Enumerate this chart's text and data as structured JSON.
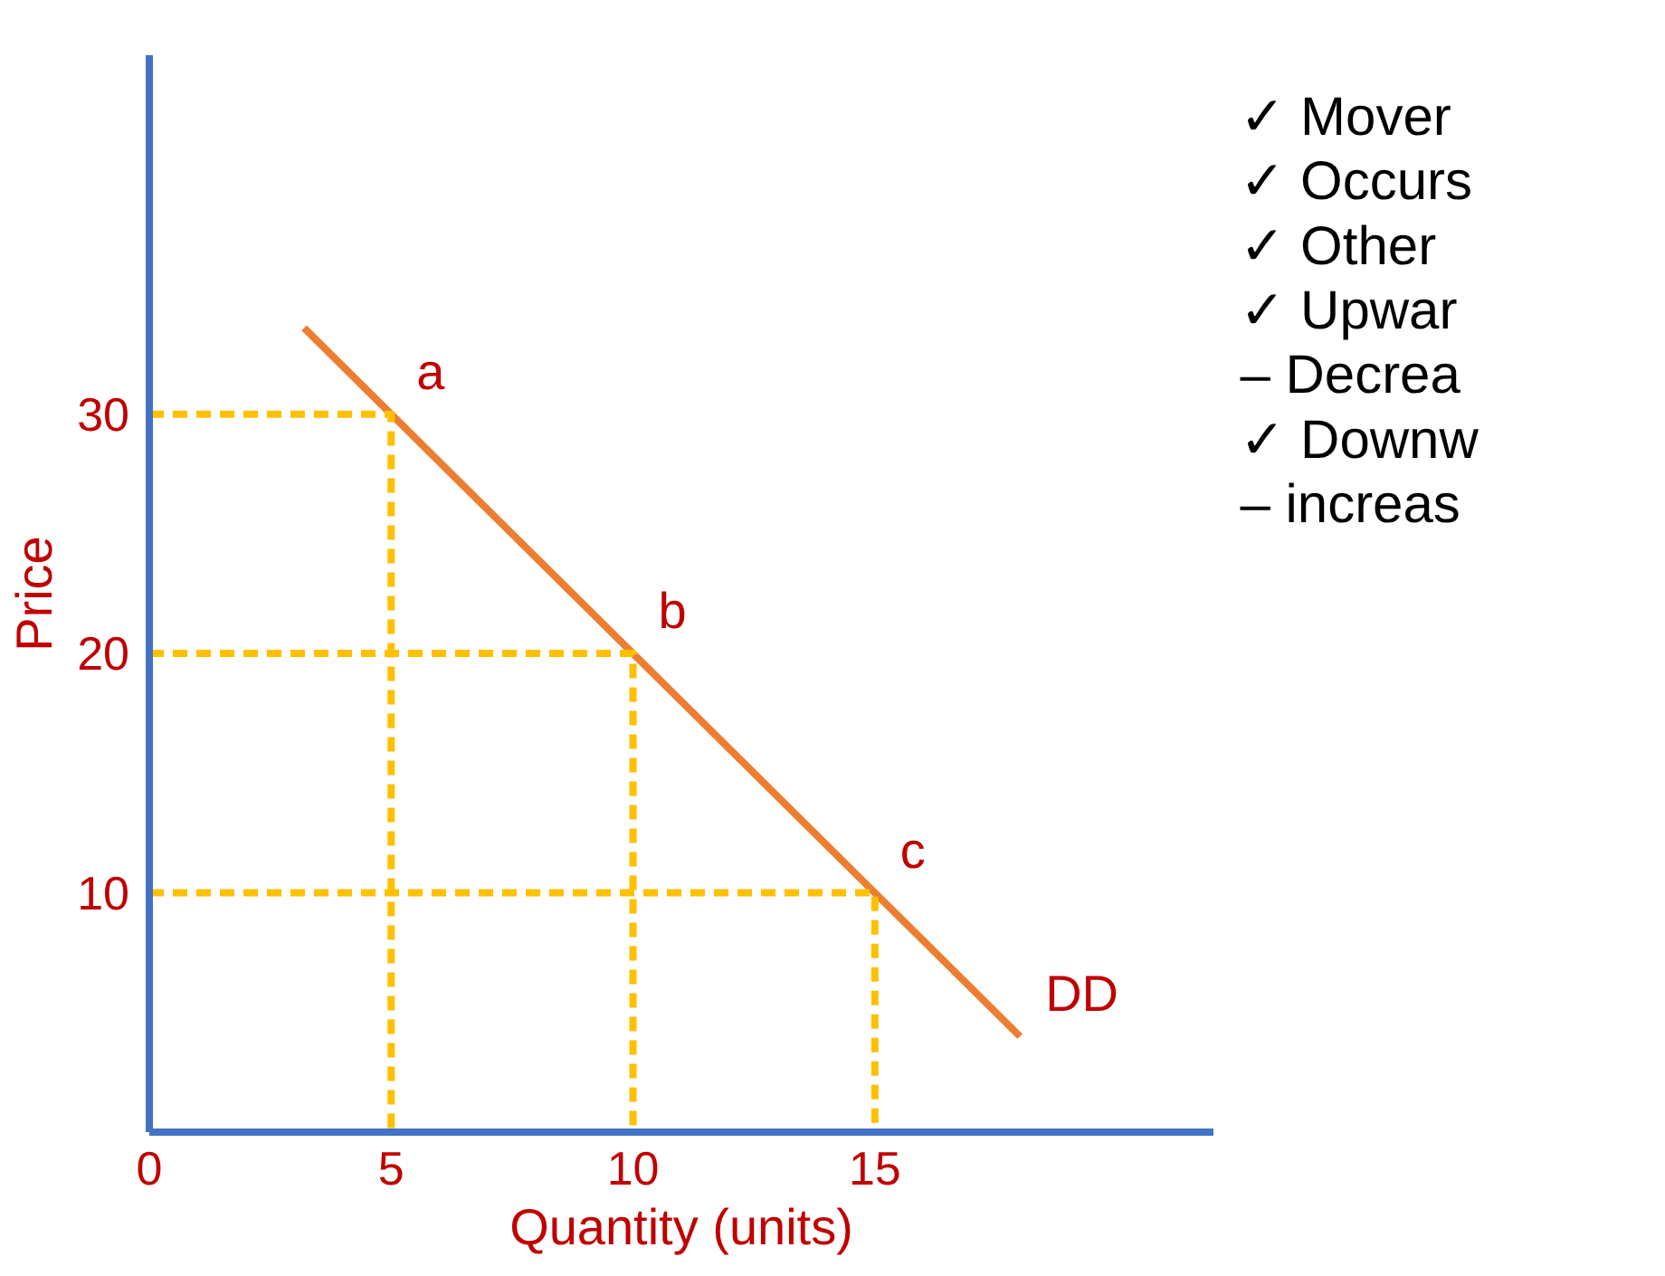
{
  "chart_data": [
    {
      "type": "line",
      "xlabel": "Quantity (units)",
      "ylabel": "Price",
      "xlim": [
        0,
        22
      ],
      "ylim": [
        0,
        45
      ],
      "xticks": [
        0,
        5,
        10,
        15
      ],
      "yticks": [
        10,
        20,
        30
      ],
      "grid": false,
      "series": [
        {
          "color": "#ed7d31",
          "x": [
            3.2,
            5,
            10,
            15,
            18
          ],
          "values": [
            33.6,
            30,
            20,
            10,
            4
          ]
        },
        {
          "color": "#ffc000",
          "line_style": "dashed",
          "x": [
            0,
            5,
            5
          ],
          "values": [
            30,
            30,
            0
          ]
        },
        {
          "color": "#ffc000",
          "line_style": "dashed",
          "x": [
            0,
            10,
            10
          ],
          "values": [
            20,
            20,
            0
          ]
        },
        {
          "color": "#ffc000",
          "line_style": "dashed",
          "x": [
            0,
            15,
            15
          ],
          "values": [
            10,
            10,
            0
          ]
        }
      ],
      "annotations": [
        {
          "text": "a",
          "x": 5,
          "y": 30
        },
        {
          "text": "b",
          "x": 10,
          "y": 20
        },
        {
          "text": "c",
          "x": 15,
          "y": 10
        },
        {
          "text": "DD",
          "x": 18,
          "y": 4
        }
      ]
    },
    {
      "type": "other",
      "annotations": [
        "✓  Mover",
        "✓  Occurs",
        "✓  Other",
        "✓  Upwar",
        "–  Decrea",
        "✓  Downw",
        "–  increas"
      ]
    }
  ]
}
